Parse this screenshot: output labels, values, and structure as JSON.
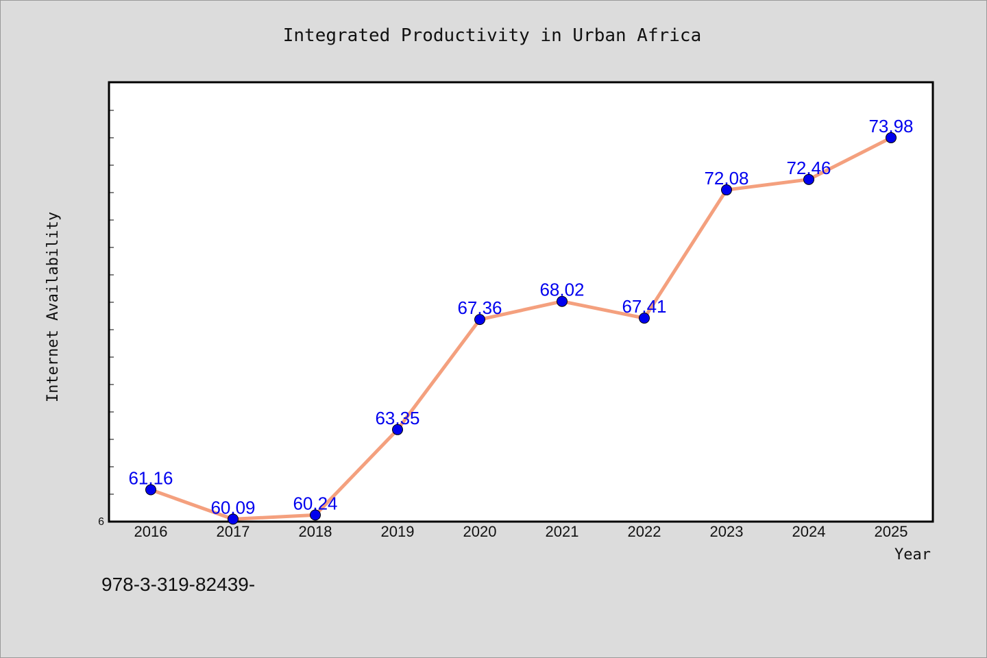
{
  "chart_data": {
    "type": "line",
    "title": "Integrated Productivity in Urban Africa",
    "xlabel": "Year",
    "ylabel": "Internet Availability",
    "categories": [
      "2016",
      "2017",
      "2018",
      "2019",
      "2020",
      "2021",
      "2022",
      "2023",
      "2024",
      "2025"
    ],
    "series": [
      {
        "values": [
          61.16,
          60.09,
          60.24,
          63.35,
          67.36,
          68.02,
          67.41,
          72.08,
          72.46,
          73.98
        ]
      }
    ],
    "data_labels": [
      "61.16",
      "60.09",
      "60.24",
      "63.35",
      "67.36",
      "68.02",
      "67.41",
      "72.08",
      "72.46",
      "73.98"
    ],
    "ylim": [
      60,
      76
    ],
    "ytick_label": "6",
    "grid": false,
    "colors": {
      "line": "#f4a07e",
      "marker": "#0000ee",
      "label": "#0000ee",
      "background": "#dcdcdc",
      "plot_bg": "#ffffff"
    }
  },
  "footer": {
    "text": "978-3-319-82439-"
  }
}
